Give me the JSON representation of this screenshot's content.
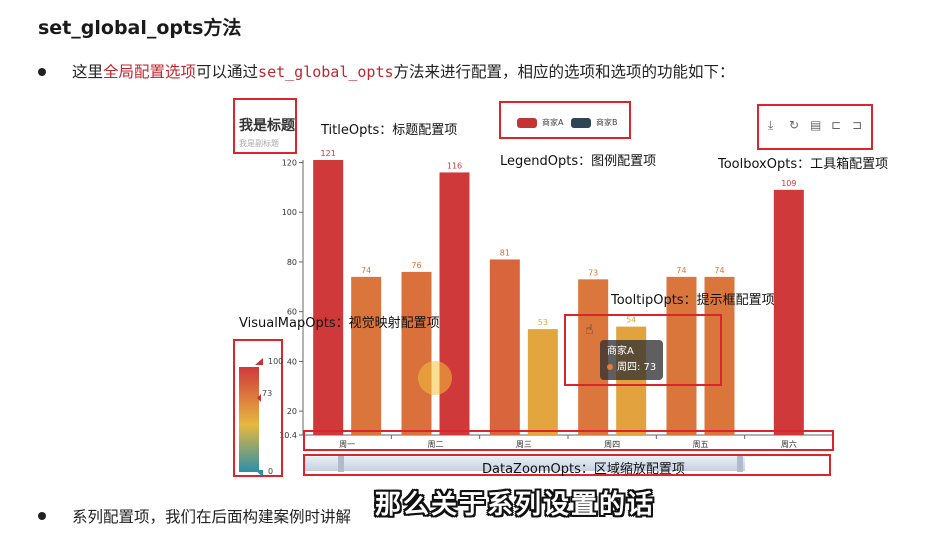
{
  "heading": "set_global_opts方法",
  "intro": {
    "prefix": "这里",
    "highlight": "全局配置选项",
    "middle": "可以通过",
    "code": "set_global_opts",
    "suffix": "方法来进行配置，相应的选项和选项的功能如下："
  },
  "series_note": "系列配置项，我们在后面构建案例时讲解",
  "caption": "那么关于系列设置的话",
  "figure": {
    "title_main": "我是标题",
    "title_sub": "我是副标题",
    "legend": [
      {
        "name": "商家A",
        "color": "#c23531"
      },
      {
        "name": "商家B",
        "color": "#2f4554"
      }
    ],
    "toolbox_icons": [
      "download-icon",
      "refresh-icon",
      "data-view-icon",
      "zoom-icon",
      "restore-icon"
    ],
    "labels": {
      "title_opts": "TitleOpts：标题配置项",
      "legend_opts": "LegendOpts：图例配置项",
      "toolbox_opts": "ToolboxOpts：工具箱配置项",
      "tooltip_opts": "TooltipOpts：提示框配置项",
      "visualmap_opts": "VisualMapOpts：视觉映射配置项",
      "datazoom_opts": "DataZoomOpts：区域缩放配置项"
    },
    "tooltip": {
      "series": "商家A",
      "item": "周四: 73"
    },
    "visualmap": {
      "max": "100",
      "min": "0",
      "current": "73"
    }
  },
  "chart_data": {
    "type": "bar",
    "categories": [
      "周一",
      "周二",
      "周三",
      "周四",
      "周五",
      "周六"
    ],
    "series": [
      {
        "name": "商家A",
        "values": [
          121,
          76,
          81,
          73,
          74,
          109
        ]
      },
      {
        "name": "商家B",
        "values": [
          74,
          116,
          53,
          54,
          74,
          null
        ]
      }
    ],
    "ylim": [
      10.4,
      121
    ],
    "yticks": [
      10.4,
      20,
      40,
      60,
      80,
      100,
      120
    ],
    "ytick_labels": [
      "10.4",
      "20",
      "40",
      "60",
      "80",
      "100",
      "120"
    ],
    "colors": {
      "low": "#2e8fa8",
      "mid": "#e6b83f",
      "high": "#d0393a"
    }
  }
}
